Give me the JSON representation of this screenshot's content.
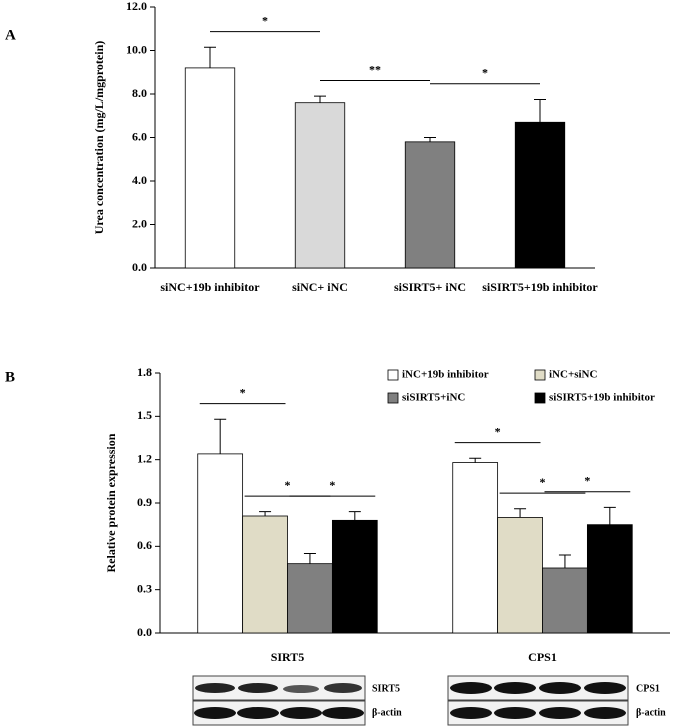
{
  "chart_data": [
    {
      "type": "bar",
      "panel": "A",
      "ylabel": "Urea concentration (mg/L/mgprotein)",
      "categories": [
        "siNC+19b inhibitor",
        "siNC+ iNC",
        "siSIRT5+ iNC",
        "siSIRT5+19b inhibitor"
      ],
      "values": [
        9.2,
        7.6,
        5.8,
        6.7
      ],
      "errors": [
        0.95,
        0.3,
        0.2,
        1.05
      ],
      "colors": [
        "#ffffff",
        "#d9d9d9",
        "#808080",
        "#000000"
      ],
      "ylim": [
        0,
        12
      ],
      "yticks": [
        {
          "value": 0,
          "label": "0.0"
        },
        {
          "value": 2,
          "label": "2.0"
        },
        {
          "value": 4,
          "label": "4.0"
        },
        {
          "value": 6,
          "label": "6.0"
        },
        {
          "value": 8,
          "label": "8.0"
        },
        {
          "value": 10,
          "label": "10.0"
        },
        {
          "value": 12,
          "label": "12.0"
        }
      ],
      "annotations": [
        {
          "text": "*",
          "between": [
            0,
            1
          ]
        },
        {
          "text": "**",
          "between": [
            1,
            2
          ]
        },
        {
          "text": "*",
          "between": [
            2,
            3
          ]
        }
      ]
    },
    {
      "type": "grouped_bar",
      "panel": "B",
      "ylabel": "Relative protein expression",
      "categories": [
        "SIRT5",
        "CPS1"
      ],
      "series": [
        {
          "name": "iNC+19b inhibitor",
          "color": "#ffffff",
          "values": [
            1.24,
            1.18
          ],
          "errors": [
            0.24,
            0.03
          ]
        },
        {
          "name": "iNC+siNC",
          "color": "#e0dcc6",
          "values": [
            0.81,
            0.8
          ],
          "errors": [
            0.03,
            0.06
          ]
        },
        {
          "name": "siSIRT5+iNC",
          "color": "#808080",
          "values": [
            0.48,
            0.45
          ],
          "errors": [
            0.07,
            0.09
          ]
        },
        {
          "name": "siSIRT5+19b inhibitor",
          "color": "#000000",
          "values": [
            0.78,
            0.75
          ],
          "errors": [
            0.06,
            0.12
          ]
        }
      ],
      "ylim": [
        0,
        1.8
      ],
      "yticks": [
        {
          "value": 0,
          "label": "0.0"
        },
        0.3,
        0.6,
        0.9,
        1.2,
        1.5,
        1.8
      ],
      "legend": "top-right",
      "annotations": [
        {
          "text": "*",
          "group": 0,
          "between": [
            0,
            1
          ]
        },
        {
          "text": "*",
          "group": 0,
          "between": [
            1,
            2
          ]
        },
        {
          "text": "*",
          "group": 0,
          "between": [
            2,
            3
          ]
        },
        {
          "text": "*",
          "group": 1,
          "between": [
            0,
            1
          ]
        },
        {
          "text": "*",
          "group": 1,
          "between": [
            1,
            2
          ]
        },
        {
          "text": "*",
          "group": 1,
          "between": [
            2,
            3
          ]
        }
      ]
    }
  ],
  "blots": [
    {
      "protein": "SIRT5",
      "control": "β-actin"
    },
    {
      "protein": "CPS1",
      "control": "β-actin"
    }
  ]
}
